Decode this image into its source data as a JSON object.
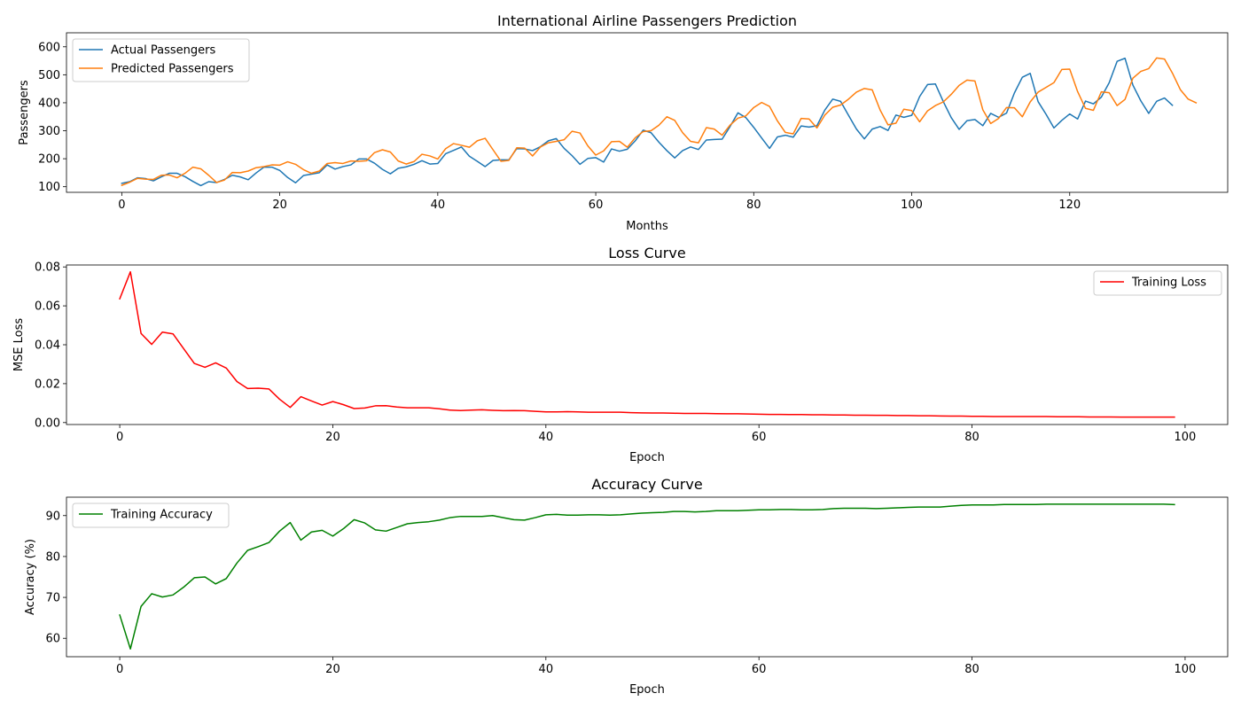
{
  "chart_data": [
    {
      "type": "line",
      "title": "International Airline Passengers Prediction",
      "xlabel": "Months",
      "ylabel": "Passengers",
      "xlim": [
        -7,
        140
      ],
      "ylim": [
        80,
        650
      ],
      "xticks": [
        0,
        20,
        40,
        60,
        80,
        100,
        120
      ],
      "yticks": [
        100,
        200,
        300,
        400,
        500,
        600
      ],
      "legend": "upper-left",
      "series": [
        {
          "name": "Actual Passengers",
          "color": "#1f77b4",
          "values": [
            112,
            118,
            132,
            129,
            121,
            135,
            148,
            148,
            136,
            119,
            104,
            118,
            115,
            126,
            141,
            135,
            125,
            149,
            170,
            170,
            158,
            133,
            114,
            140,
            145,
            150,
            178,
            163,
            172,
            178,
            199,
            199,
            184,
            162,
            146,
            166,
            171,
            180,
            193,
            181,
            183,
            218,
            230,
            242,
            209,
            191,
            172,
            194,
            196,
            196,
            236,
            235,
            229,
            243,
            264,
            272,
            237,
            211,
            180,
            201,
            204,
            188,
            235,
            227,
            234,
            264,
            302,
            293,
            259,
            229,
            203,
            229,
            242,
            233,
            267,
            269,
            270,
            315,
            364,
            347,
            312,
            274,
            237,
            278,
            284,
            277,
            317,
            313,
            318,
            374,
            413,
            405,
            355,
            306,
            271,
            306,
            315,
            301,
            356,
            348,
            355,
            422,
            465,
            467,
            404,
            347,
            305,
            336,
            340,
            318,
            362,
            348,
            363,
            435,
            491,
            505,
            404,
            359,
            310,
            337,
            360,
            342,
            406,
            396,
            420,
            472,
            548,
            559,
            463,
            407,
            362,
            405,
            417,
            391
          ]
        },
        {
          "name": "Predicted Passengers",
          "color": "#ff7f0e",
          "values": [
            105,
            116,
            130,
            127,
            126,
            141,
            142,
            132,
            148,
            170,
            164,
            141,
            115,
            124,
            151,
            150,
            156,
            168,
            172,
            178,
            177,
            189,
            180,
            161,
            148,
            156,
            183,
            186,
            183,
            192,
            191,
            193,
            222,
            232,
            224,
            192,
            181,
            190,
            216,
            210,
            199,
            236,
            254,
            248,
            241,
            264,
            273,
            232,
            191,
            194,
            239,
            238,
            210,
            242,
            257,
            262,
            268,
            298,
            292,
            246,
            213,
            228,
            261,
            262,
            241,
            275,
            297,
            300,
            320,
            350,
            337,
            293,
            262,
            257,
            311,
            306,
            284,
            320,
            345,
            353,
            383,
            401,
            387,
            335,
            294,
            289,
            344,
            342,
            310,
            356,
            384,
            392,
            413,
            438,
            451,
            446,
            374,
            321,
            327,
            377,
            372,
            332,
            371,
            390,
            403,
            430,
            462,
            481,
            478,
            375,
            326,
            344,
            383,
            382,
            350,
            403,
            438,
            455,
            472,
            519,
            520,
            440,
            380,
            373,
            439,
            436,
            390,
            412,
            488,
            512,
            522,
            560,
            556,
            506,
            447,
            413,
            400
          ]
        }
      ]
    },
    {
      "type": "line",
      "title": "Loss Curve",
      "xlabel": "Epoch",
      "ylabel": "MSE Loss",
      "xlim": [
        -5,
        104
      ],
      "ylim": [
        -0.001,
        0.081
      ],
      "xticks": [
        0,
        20,
        40,
        60,
        80,
        100
      ],
      "yticks": [
        0.0,
        0.02,
        0.04,
        0.06,
        0.08
      ],
      "ytick_labels": [
        "0.00",
        "0.02",
        "0.04",
        "0.06",
        "0.08"
      ],
      "legend": "upper-right",
      "series": [
        {
          "name": "Training Loss",
          "color": "#ff0000",
          "values": [
            0.0636,
            0.0775,
            0.0458,
            0.0402,
            0.0465,
            0.0456,
            0.038,
            0.0304,
            0.0284,
            0.0307,
            0.028,
            0.0211,
            0.0175,
            0.0177,
            0.0173,
            0.012,
            0.0078,
            0.0133,
            0.0111,
            0.009,
            0.0108,
            0.0092,
            0.0072,
            0.0075,
            0.0086,
            0.0087,
            0.008,
            0.0076,
            0.0076,
            0.0076,
            0.0071,
            0.0064,
            0.0062,
            0.0064,
            0.0066,
            0.0063,
            0.0061,
            0.0062,
            0.0061,
            0.0058,
            0.0055,
            0.0055,
            0.0056,
            0.0055,
            0.0053,
            0.0053,
            0.0053,
            0.0053,
            0.0051,
            0.005,
            0.0049,
            0.0049,
            0.0048,
            0.0047,
            0.0047,
            0.0047,
            0.0046,
            0.0045,
            0.0045,
            0.0044,
            0.0043,
            0.0042,
            0.0042,
            0.0041,
            0.0041,
            0.004,
            0.004,
            0.0039,
            0.0039,
            0.0038,
            0.0038,
            0.0037,
            0.0037,
            0.0036,
            0.0036,
            0.0035,
            0.0035,
            0.0034,
            0.0033,
            0.0033,
            0.0032,
            0.0032,
            0.0031,
            0.0031,
            0.0031,
            0.0031,
            0.0031,
            0.0031,
            0.003,
            0.003,
            0.003,
            0.0029,
            0.0029,
            0.0029,
            0.0028,
            0.0028,
            0.0028,
            0.0028,
            0.0028,
            0.0028
          ]
        }
      ]
    },
    {
      "type": "line",
      "title": "Accuracy Curve",
      "xlabel": "Epoch",
      "ylabel": "Accuracy (%)",
      "xlim": [
        -5,
        104
      ],
      "ylim": [
        55.5,
        94.5
      ],
      "xticks": [
        0,
        20,
        40,
        60,
        80,
        100
      ],
      "yticks": [
        60,
        70,
        80,
        90
      ],
      "legend": "upper-left",
      "series": [
        {
          "name": "Training Accuracy",
          "color": "#008000",
          "values": [
            65.7,
            57.4,
            67.8,
            70.9,
            70.1,
            70.6,
            72.5,
            74.8,
            75.0,
            73.3,
            74.6,
            78.4,
            81.5,
            82.4,
            83.4,
            86.2,
            88.3,
            84.0,
            86.0,
            86.4,
            85.0,
            86.8,
            89.0,
            88.2,
            86.5,
            86.2,
            87.1,
            88.0,
            88.3,
            88.5,
            88.9,
            89.5,
            89.8,
            89.8,
            89.8,
            90.0,
            89.5,
            89.0,
            88.9,
            89.5,
            90.2,
            90.3,
            90.1,
            90.1,
            90.2,
            90.2,
            90.1,
            90.2,
            90.4,
            90.6,
            90.7,
            90.8,
            91.0,
            91.0,
            90.9,
            91.0,
            91.2,
            91.2,
            91.2,
            91.3,
            91.4,
            91.4,
            91.5,
            91.5,
            91.4,
            91.4,
            91.5,
            91.7,
            91.8,
            91.8,
            91.8,
            91.7,
            91.8,
            91.9,
            92.0,
            92.1,
            92.1,
            92.1,
            92.3,
            92.5,
            92.6,
            92.6,
            92.6,
            92.7,
            92.7,
            92.7,
            92.7,
            92.8,
            92.8,
            92.8,
            92.8,
            92.8,
            92.8,
            92.8,
            92.8,
            92.8,
            92.8,
            92.8,
            92.8,
            92.7
          ]
        }
      ]
    }
  ]
}
